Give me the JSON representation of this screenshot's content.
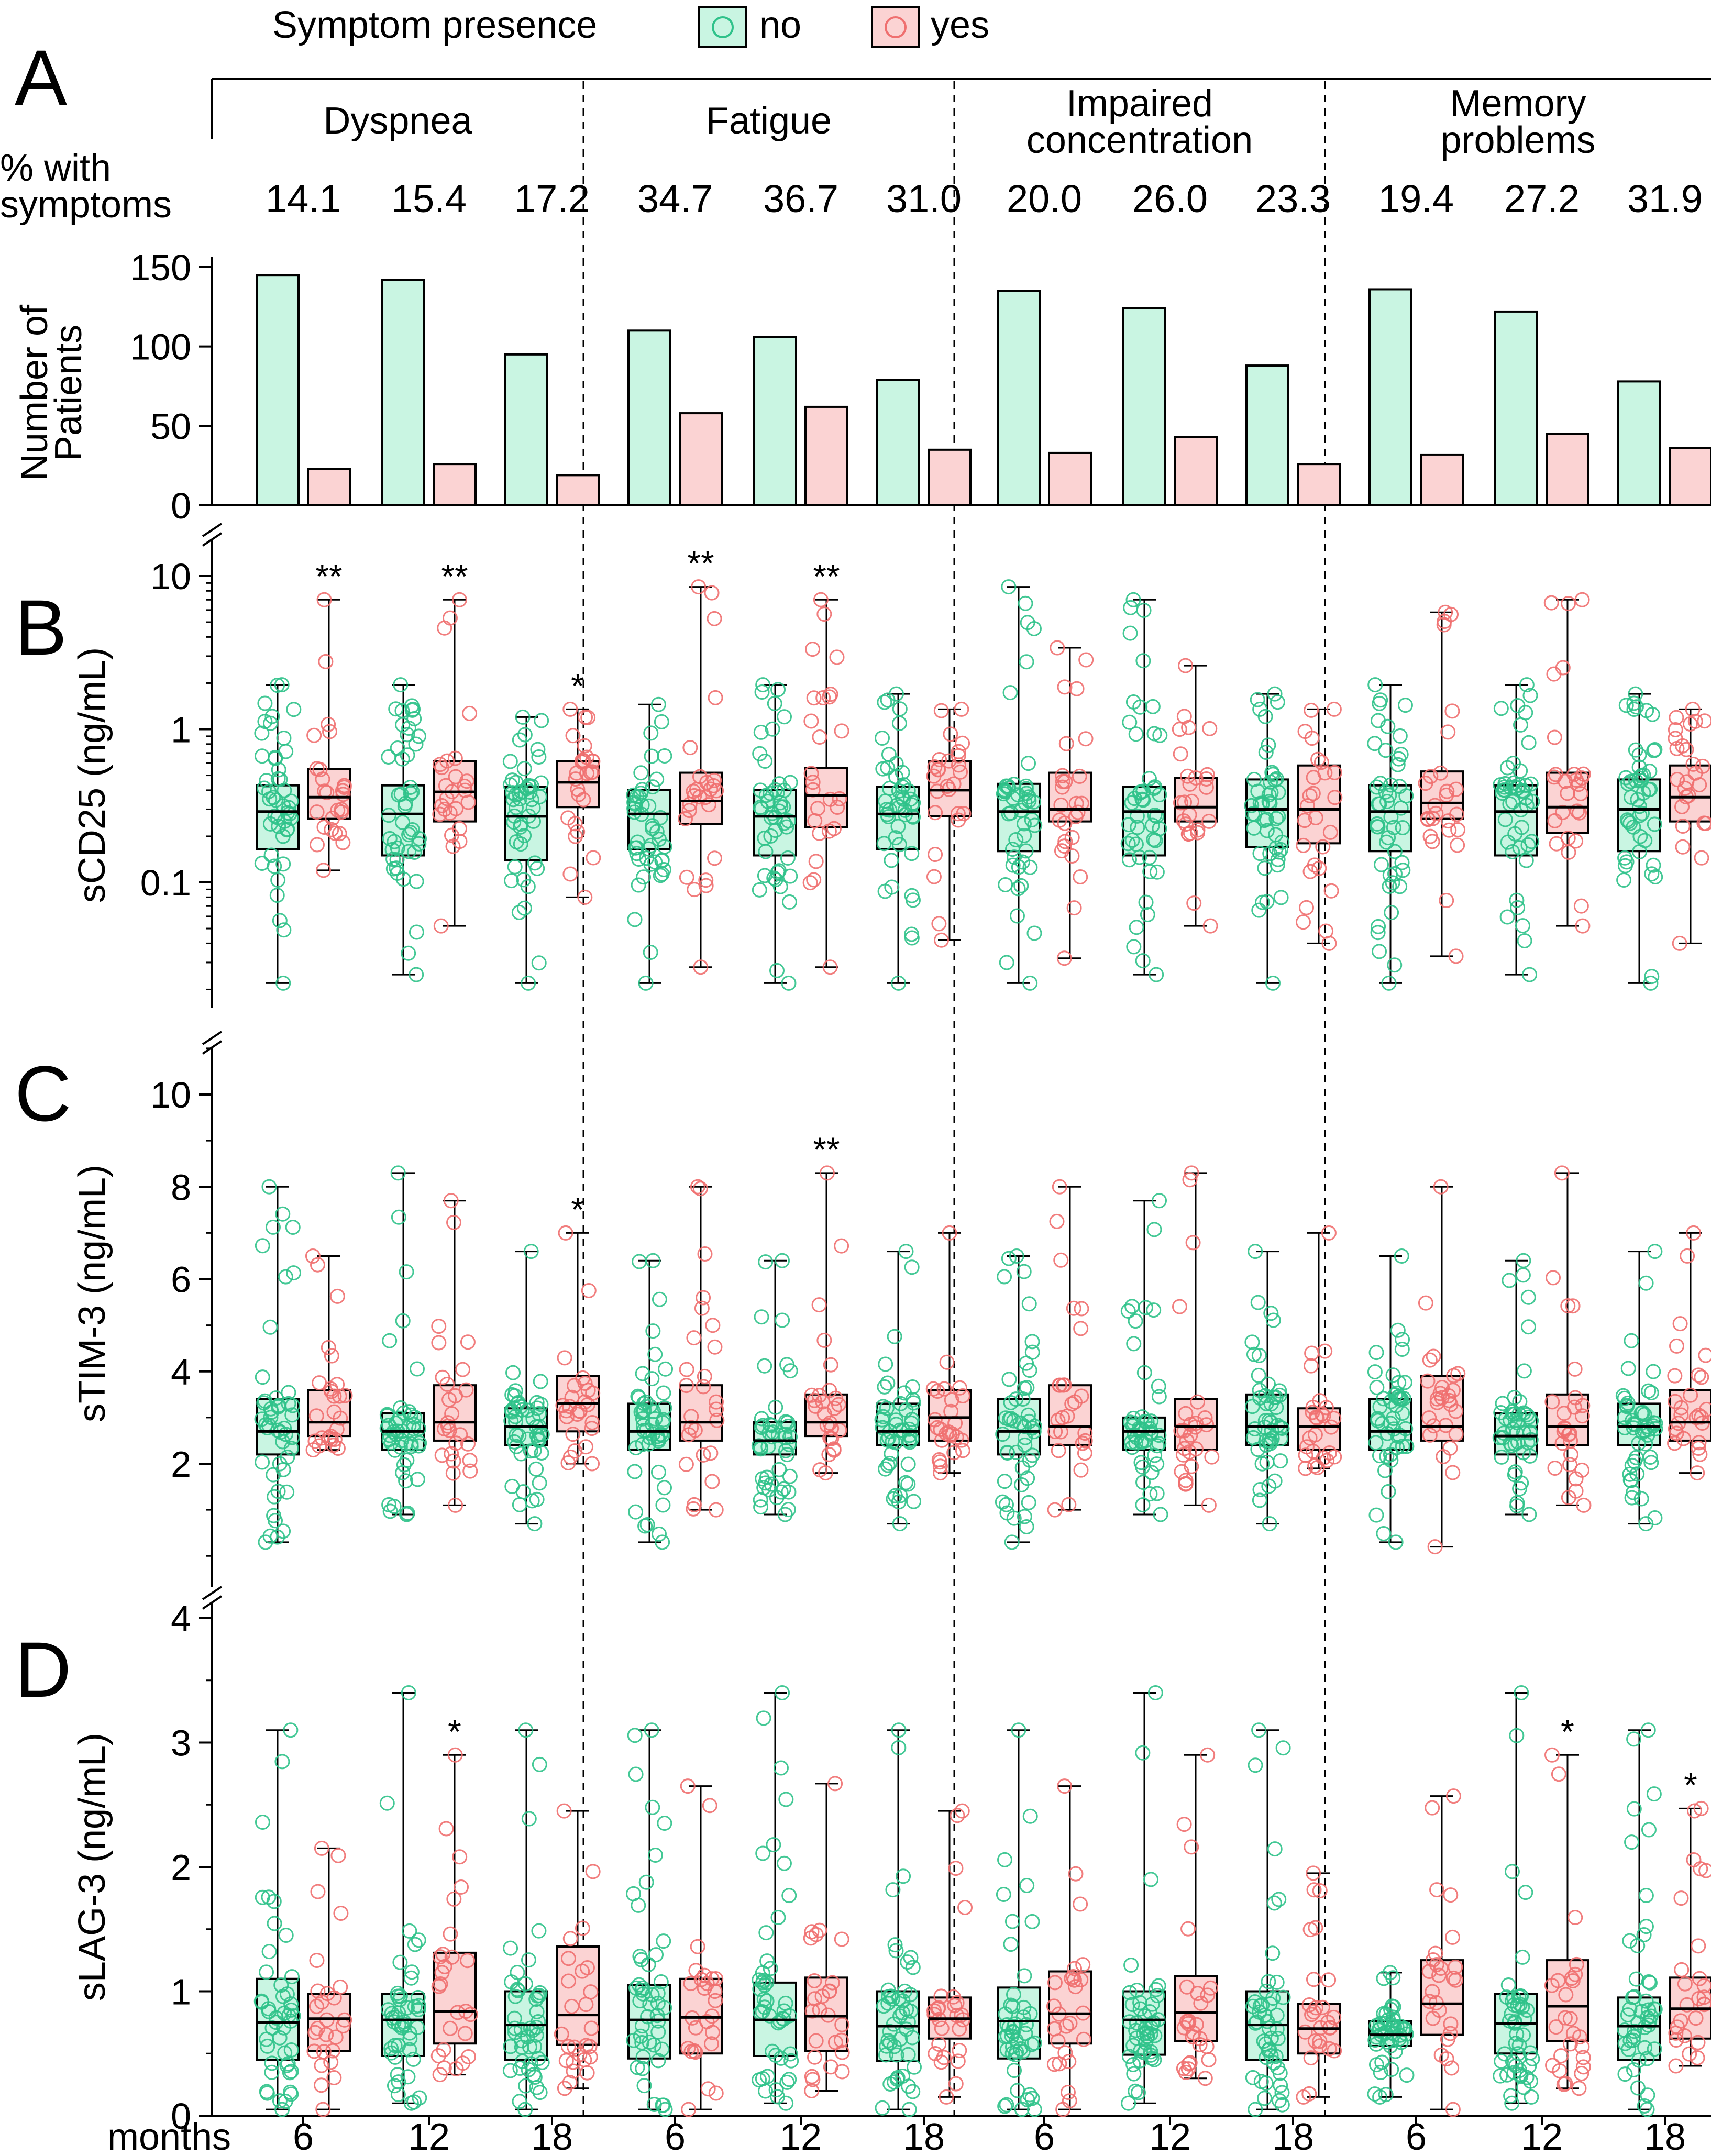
{
  "legend": {
    "title": "Symptom presence",
    "no": "no",
    "yes": "yes"
  },
  "colors": {
    "no_fill": "#c9f5e2",
    "no_stroke": "#2fc28a",
    "yes_fill": "#fbd3d3",
    "yes_stroke": "#ef6f6f",
    "axis": "#000000"
  },
  "panels": {
    "A": {
      "letter": "A",
      "pct_label_1": "% with",
      "pct_label_2": "symptoms",
      "ylabel_1": "Number of",
      "ylabel_2": "Patients"
    },
    "B": {
      "letter": "B",
      "ylabel": "sCD25 (ng/mL)"
    },
    "C": {
      "letter": "C",
      "ylabel": "sTIM-3 (ng/mL)"
    },
    "D": {
      "letter": "D",
      "ylabel": "sLAG-3 (ng/mL)"
    }
  },
  "months_label": "months",
  "chart_data": {
    "type": "bar+box",
    "groups": [
      {
        "name": "Dyspnea",
        "name_lines": [
          "Dyspnea"
        ]
      },
      {
        "name": "Fatigue",
        "name_lines": [
          "Fatigue"
        ]
      },
      {
        "name": "Impaired concentration",
        "name_lines": [
          "Impaired",
          "concentration"
        ]
      },
      {
        "name": "Memory problems",
        "name_lines": [
          "Memory",
          "problems"
        ]
      }
    ],
    "timepoints": [
      "6",
      "12",
      "18"
    ],
    "percent_with_symptoms": [
      [
        "14.1",
        "15.4",
        "17.2"
      ],
      [
        "34.7",
        "36.7",
        "31.0"
      ],
      [
        "20.0",
        "26.0",
        "23.3"
      ],
      [
        "19.4",
        "27.2",
        "31.9"
      ]
    ],
    "patients": {
      "ylim": [
        0,
        150
      ],
      "yticks": [
        "0",
        "50",
        "100",
        "150"
      ],
      "no": [
        [
          145,
          142,
          95
        ],
        [
          110,
          106,
          79
        ],
        [
          135,
          124,
          88
        ],
        [
          136,
          122,
          78
        ]
      ],
      "yes": [
        [
          23,
          26,
          19
        ],
        [
          58,
          62,
          35
        ],
        [
          33,
          43,
          26
        ],
        [
          32,
          45,
          36
        ]
      ]
    },
    "sCD25": {
      "scale": "log",
      "ylim": [
        0.01,
        15
      ],
      "yticks": [
        "0.1",
        "1",
        "10"
      ],
      "boxes": [
        [
          {
            "no": [
              0.022,
              0.165,
              0.29,
              0.43,
              1.95
            ],
            "yes": [
              0.12,
              0.26,
              0.36,
              0.55,
              7.0
            ],
            "sig": "**"
          },
          {
            "no": [
              0.025,
              0.15,
              0.28,
              0.43,
              1.95
            ],
            "yes": [
              0.052,
              0.25,
              0.39,
              0.62,
              7.0
            ],
            "sig": "**"
          },
          {
            "no": [
              0.022,
              0.14,
              0.27,
              0.42,
              1.2
            ],
            "yes": [
              0.08,
              0.31,
              0.45,
              0.62,
              1.35
            ],
            "sig": "*"
          }
        ],
        [
          {
            "no": [
              0.022,
              0.165,
              0.28,
              0.4,
              1.45
            ],
            "yes": [
              0.028,
              0.24,
              0.34,
              0.52,
              8.5
            ],
            "sig": "**"
          },
          {
            "no": [
              0.022,
              0.15,
              0.27,
              0.4,
              1.95
            ],
            "yes": [
              0.028,
              0.23,
              0.37,
              0.56,
              7.0
            ],
            "sig": "**"
          },
          {
            "no": [
              0.022,
              0.165,
              0.28,
              0.42,
              1.7
            ],
            "yes": [
              0.042,
              0.27,
              0.4,
              0.62,
              1.35
            ],
            "sig": ""
          }
        ],
        [
          {
            "no": [
              0.022,
              0.16,
              0.29,
              0.44,
              8.5
            ],
            "yes": [
              0.032,
              0.25,
              0.3,
              0.52,
              3.4
            ],
            "sig": ""
          },
          {
            "no": [
              0.025,
              0.15,
              0.29,
              0.42,
              7.0
            ],
            "yes": [
              0.052,
              0.25,
              0.31,
              0.48,
              2.6
            ],
            "sig": ""
          },
          {
            "no": [
              0.022,
              0.17,
              0.3,
              0.47,
              1.7
            ],
            "yes": [
              0.04,
              0.18,
              0.3,
              0.58,
              1.35
            ],
            "sig": ""
          }
        ],
        [
          {
            "no": [
              0.022,
              0.16,
              0.29,
              0.43,
              1.95
            ],
            "yes": [
              0.033,
              0.26,
              0.33,
              0.53,
              5.8
            ],
            "sig": ""
          },
          {
            "no": [
              0.025,
              0.15,
              0.29,
              0.43,
              1.95
            ],
            "yes": [
              0.052,
              0.21,
              0.31,
              0.52,
              7.0
            ],
            "sig": ""
          },
          {
            "no": [
              0.022,
              0.16,
              0.3,
              0.47,
              1.7
            ],
            "yes": [
              0.04,
              0.25,
              0.36,
              0.58,
              1.35
            ],
            "sig": ""
          }
        ]
      ]
    },
    "sTIM-3": {
      "scale": "linear",
      "ylim": [
        0,
        11
      ],
      "yticks": [
        "2",
        "4",
        "6",
        "8",
        "10"
      ],
      "boxes": [
        [
          {
            "no": [
              0.3,
              2.2,
              2.7,
              3.4,
              8.0
            ],
            "yes": [
              2.3,
              2.6,
              2.9,
              3.6,
              6.5
            ],
            "sig": ""
          },
          {
            "no": [
              0.9,
              2.3,
              2.7,
              3.1,
              8.3
            ],
            "yes": [
              1.1,
              2.5,
              2.9,
              3.7,
              7.7
            ],
            "sig": ""
          },
          {
            "no": [
              0.7,
              2.4,
              2.8,
              3.2,
              6.6
            ],
            "yes": [
              2.0,
              2.7,
              3.3,
              3.9,
              7.0
            ],
            "sig": "*"
          }
        ],
        [
          {
            "no": [
              0.3,
              2.3,
              2.7,
              3.3,
              6.4
            ],
            "yes": [
              1.0,
              2.5,
              2.9,
              3.7,
              8.0
            ],
            "sig": ""
          },
          {
            "no": [
              0.9,
              2.2,
              2.5,
              2.9,
              6.4
            ],
            "yes": [
              1.8,
              2.6,
              2.9,
              3.5,
              8.3
            ],
            "sig": "**"
          },
          {
            "no": [
              0.7,
              2.4,
              2.7,
              3.3,
              6.6
            ],
            "yes": [
              1.8,
              2.5,
              3.0,
              3.6,
              7.0
            ],
            "sig": ""
          }
        ],
        [
          {
            "no": [
              0.3,
              2.2,
              2.7,
              3.4,
              6.5
            ],
            "yes": [
              1.0,
              2.4,
              2.8,
              3.7,
              8.0
            ],
            "sig": ""
          },
          {
            "no": [
              0.9,
              2.3,
              2.7,
              3.0,
              7.7
            ],
            "yes": [
              1.1,
              2.3,
              2.8,
              3.4,
              8.3
            ],
            "sig": ""
          },
          {
            "no": [
              0.7,
              2.4,
              2.8,
              3.5,
              6.6
            ],
            "yes": [
              1.9,
              2.3,
              2.8,
              3.2,
              7.0
            ],
            "sig": ""
          }
        ],
        [
          {
            "no": [
              0.3,
              2.3,
              2.7,
              3.4,
              6.5
            ],
            "yes": [
              0.2,
              2.5,
              2.8,
              3.9,
              8.0
            ],
            "sig": ""
          },
          {
            "no": [
              0.9,
              2.2,
              2.6,
              3.1,
              6.4
            ],
            "yes": [
              1.1,
              2.4,
              2.8,
              3.5,
              8.3
            ],
            "sig": ""
          },
          {
            "no": [
              0.7,
              2.4,
              2.8,
              3.3,
              6.6
            ],
            "yes": [
              1.8,
              2.5,
              2.9,
              3.6,
              7.0
            ],
            "sig": ""
          }
        ]
      ]
    },
    "sLAG-3": {
      "scale": "linear",
      "ylim": [
        0,
        4
      ],
      "yticks": [
        "0",
        "1",
        "2",
        "3",
        "4"
      ],
      "boxes": [
        [
          {
            "no": [
              0.05,
              0.45,
              0.75,
              1.1,
              3.1
            ],
            "yes": [
              0.05,
              0.52,
              0.78,
              0.98,
              2.15
            ],
            "sig": ""
          },
          {
            "no": [
              0.1,
              0.48,
              0.77,
              0.98,
              3.4
            ],
            "yes": [
              0.33,
              0.58,
              0.84,
              1.31,
              2.9
            ],
            "sig": "*"
          },
          {
            "no": [
              0.05,
              0.45,
              0.73,
              1.0,
              3.1
            ],
            "yes": [
              0.22,
              0.57,
              0.81,
              1.36,
              2.45
            ],
            "sig": ""
          }
        ],
        [
          {
            "no": [
              0.05,
              0.46,
              0.77,
              1.05,
              3.1
            ],
            "yes": [
              0.05,
              0.5,
              0.79,
              1.1,
              2.65
            ],
            "sig": ""
          },
          {
            "no": [
              0.1,
              0.48,
              0.77,
              1.07,
              3.4
            ],
            "yes": [
              0.2,
              0.52,
              0.8,
              1.11,
              2.67
            ],
            "sig": ""
          },
          {
            "no": [
              0.05,
              0.44,
              0.72,
              1.0,
              3.1
            ],
            "yes": [
              0.15,
              0.62,
              0.78,
              0.95,
              2.45
            ],
            "sig": ""
          }
        ],
        [
          {
            "no": [
              0.05,
              0.46,
              0.76,
              1.03,
              3.1
            ],
            "yes": [
              0.05,
              0.58,
              0.82,
              1.16,
              2.65
            ],
            "sig": ""
          },
          {
            "no": [
              0.1,
              0.49,
              0.77,
              1.0,
              3.4
            ],
            "yes": [
              0.3,
              0.6,
              0.83,
              1.12,
              2.9
            ],
            "sig": ""
          },
          {
            "no": [
              0.05,
              0.45,
              0.73,
              1.0,
              3.1
            ],
            "yes": [
              0.15,
              0.5,
              0.7,
              0.9,
              1.95
            ],
            "sig": ""
          }
        ],
        [
          {
            "no": [
              0.15,
              0.56,
              0.65,
              0.76,
              1.15
            ],
            "yes": [
              0.05,
              0.65,
              0.9,
              1.25,
              2.57
            ],
            "sig": ""
          },
          {
            "no": [
              0.1,
              0.5,
              0.74,
              0.98,
              3.4
            ],
            "yes": [
              0.22,
              0.6,
              0.88,
              1.25,
              2.9
            ],
            "sig": "*"
          },
          {
            "no": [
              0.05,
              0.45,
              0.72,
              0.95,
              3.1
            ],
            "yes": [
              0.4,
              0.62,
              0.86,
              1.11,
              2.47
            ],
            "sig": "*"
          }
        ]
      ]
    }
  }
}
